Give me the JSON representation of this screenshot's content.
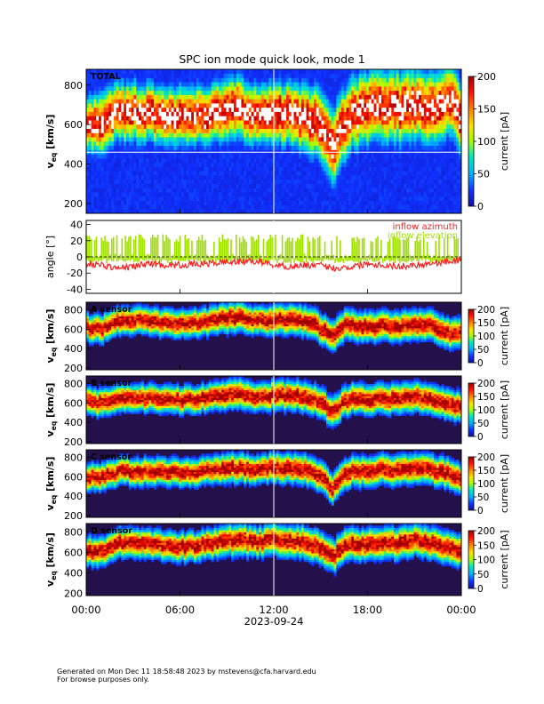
{
  "footer": {
    "line1": "Generated on Mon Dec 11 18:58:48 2023 by mstevens@cfa.harvard.edu",
    "line2": "For browse purposes only."
  },
  "chart_data": [
    {
      "type": "heatmap",
      "title": "SPC ion mode quick look, mode 1",
      "panel_label": "TOTAL",
      "ylabel_main": "v",
      "ylabel_sub": "eq",
      "ylabel_unit": "[km/s]",
      "yticks": [
        200,
        400,
        600,
        800
      ],
      "ylim": [
        150,
        880
      ],
      "xlim_hours": [
        0,
        24
      ],
      "colorbar": {
        "label": "current [pA]",
        "ticks": [
          0,
          50,
          100,
          150,
          200
        ],
        "range": [
          0,
          200
        ]
      },
      "marker_line_v": 460,
      "ridge": {
        "x_hours": [
          0,
          1,
          2,
          3,
          4,
          5,
          6,
          7,
          8,
          9,
          10,
          11,
          12,
          13,
          14,
          15,
          15.8,
          16.5,
          17,
          18,
          19,
          20,
          21,
          22,
          23,
          23.5,
          24
        ],
        "v_center": [
          620,
          600,
          660,
          660,
          660,
          650,
          640,
          650,
          660,
          690,
          680,
          640,
          660,
          650,
          640,
          600,
          480,
          600,
          660,
          680,
          700,
          690,
          700,
          680,
          720,
          720,
          640
        ],
        "v_width": [
          110,
          130,
          120,
          120,
          120,
          120,
          120,
          120,
          120,
          130,
          130,
          120,
          130,
          130,
          140,
          150,
          160,
          150,
          150,
          150,
          150,
          150,
          150,
          150,
          150,
          150,
          150
        ]
      }
    },
    {
      "type": "line",
      "ylabel": "angle [°]",
      "yticks": [
        -40,
        -20,
        0,
        20,
        40
      ],
      "ylim": [
        -45,
        45
      ],
      "xlim_hours": [
        0,
        24
      ],
      "legend": [
        {
          "name": "inflow azimuth",
          "color": "#ff2020"
        },
        {
          "name": "inflow elevation",
          "color": "#a0e000"
        }
      ],
      "series": [
        {
          "name": "inflow azimuth",
          "color": "#ff2020",
          "x_hours": [
            0,
            1,
            2,
            3,
            4,
            5,
            6,
            7,
            8,
            9,
            10,
            11,
            12,
            13,
            14,
            15,
            16,
            17,
            18,
            19,
            20,
            21,
            22,
            23,
            24
          ],
          "values": [
            -8,
            -10,
            -14,
            -12,
            -8,
            -10,
            -10,
            -9,
            -8,
            -6,
            -6,
            -5,
            -10,
            -12,
            -10,
            -11,
            -14,
            -12,
            -8,
            -10,
            -12,
            -10,
            -8,
            -6,
            -4
          ]
        },
        {
          "name": "inflow elevation",
          "color": "#a0e000",
          "x_hours": [
            0,
            24
          ],
          "values": [
            -2,
            28
          ]
        }
      ]
    },
    {
      "type": "heatmap",
      "panel_label": "A sensor",
      "ylabel_main": "v",
      "ylabel_sub": "eq",
      "ylabel_unit": "[km/s]",
      "yticks": [
        200,
        400,
        600,
        800
      ],
      "ylim": [
        180,
        880
      ],
      "xlim_hours": [
        0,
        24
      ],
      "colorbar": {
        "label": "current [pA]",
        "ticks": [
          0,
          50,
          100,
          150,
          200
        ],
        "range": [
          0,
          200
        ]
      },
      "ridge": {
        "x_hours": [
          0,
          1,
          2,
          3,
          4,
          5,
          6,
          7,
          8,
          9,
          10,
          11,
          12,
          13,
          14,
          15,
          15.8,
          16.5,
          17,
          18,
          19,
          20,
          21,
          22,
          23,
          24
        ],
        "v_center": [
          620,
          600,
          690,
          690,
          690,
          670,
          650,
          660,
          690,
          720,
          720,
          690,
          700,
          700,
          690,
          620,
          520,
          640,
          640,
          620,
          640,
          620,
          660,
          640,
          560,
          560
        ],
        "v_width": [
          110,
          110,
          110,
          110,
          110,
          110,
          110,
          110,
          110,
          120,
          120,
          110,
          120,
          120,
          120,
          120,
          120,
          120,
          120,
          120,
          120,
          120,
          120,
          120,
          120,
          120
        ]
      }
    },
    {
      "type": "heatmap",
      "panel_label": "B sensor",
      "ylabel_main": "v",
      "ylabel_sub": "eq",
      "ylabel_unit": "[km/s]",
      "yticks": [
        200,
        400,
        600,
        800
      ],
      "ylim": [
        180,
        880
      ],
      "xlim_hours": [
        0,
        24
      ],
      "colorbar": {
        "label": "current [pA]",
        "ticks": [
          0,
          50,
          100,
          150,
          200
        ],
        "range": [
          0,
          200
        ]
      },
      "ridge": {
        "x_hours": [
          0,
          1,
          2,
          3,
          4,
          5,
          6,
          7,
          8,
          9,
          10,
          11,
          12,
          13,
          14,
          15,
          15.8,
          16.5,
          17,
          18,
          19,
          20,
          21,
          22,
          23,
          24
        ],
        "v_center": [
          620,
          600,
          640,
          660,
          650,
          640,
          630,
          640,
          660,
          690,
          690,
          650,
          690,
          680,
          670,
          610,
          500,
          620,
          640,
          640,
          650,
          640,
          660,
          650,
          600,
          560
        ],
        "v_width": [
          110,
          110,
          110,
          110,
          110,
          110,
          110,
          110,
          110,
          120,
          120,
          110,
          120,
          120,
          120,
          120,
          120,
          120,
          120,
          120,
          120,
          120,
          120,
          120,
          120,
          120
        ]
      }
    },
    {
      "type": "heatmap",
      "panel_label": "C sensor",
      "ylabel_main": "v",
      "ylabel_sub": "eq",
      "ylabel_unit": "[km/s]",
      "yticks": [
        200,
        400,
        600,
        800
      ],
      "ylim": [
        180,
        880
      ],
      "xlim_hours": [
        0,
        24
      ],
      "colorbar": {
        "label": "current [pA]",
        "ticks": [
          0,
          50,
          100,
          150,
          200
        ],
        "range": [
          0,
          200
        ]
      },
      "ridge": {
        "x_hours": [
          0,
          1,
          2,
          3,
          4,
          5,
          6,
          7,
          8,
          9,
          10,
          11,
          12,
          13,
          14,
          15,
          15.8,
          16.5,
          17,
          18,
          19,
          20,
          21,
          22,
          23,
          24
        ],
        "v_center": [
          600,
          590,
          660,
          660,
          660,
          650,
          640,
          650,
          670,
          700,
          690,
          660,
          700,
          690,
          680,
          600,
          480,
          620,
          660,
          660,
          680,
          660,
          700,
          680,
          640,
          580
        ],
        "v_width": [
          110,
          110,
          110,
          110,
          110,
          110,
          110,
          110,
          110,
          120,
          120,
          110,
          120,
          120,
          120,
          120,
          120,
          120,
          120,
          120,
          120,
          120,
          120,
          120,
          120,
          120
        ]
      }
    },
    {
      "type": "heatmap",
      "panel_label": "D sensor",
      "ylabel_main": "v",
      "ylabel_sub": "eq",
      "ylabel_unit": "[km/s]",
      "yticks": [
        200,
        400,
        600,
        800
      ],
      "ylim": [
        180,
        880
      ],
      "xlim_hours": [
        0,
        24
      ],
      "colorbar": {
        "label": "current [pA]",
        "ticks": [
          0,
          50,
          100,
          150,
          200
        ],
        "range": [
          0,
          200
        ]
      },
      "xticks": [
        "00:00",
        "06:00",
        "12:00",
        "18:00",
        "00:00"
      ],
      "xlabel": "2023-09-24",
      "ridge": {
        "x_hours": [
          0,
          1,
          2,
          3,
          4,
          5,
          6,
          7,
          8,
          9,
          10,
          11,
          12,
          13,
          14,
          15,
          15.8,
          16.5,
          17,
          18,
          19,
          20,
          21,
          22,
          23,
          24
        ],
        "v_center": [
          620,
          600,
          690,
          690,
          690,
          670,
          650,
          660,
          690,
          720,
          720,
          700,
          720,
          710,
          700,
          640,
          560,
          660,
          680,
          680,
          700,
          680,
          720,
          700,
          660,
          600
        ],
        "v_width": [
          110,
          110,
          110,
          110,
          110,
          110,
          110,
          110,
          110,
          120,
          120,
          110,
          120,
          120,
          120,
          120,
          120,
          120,
          120,
          120,
          120,
          120,
          120,
          120,
          120,
          120
        ]
      }
    }
  ]
}
